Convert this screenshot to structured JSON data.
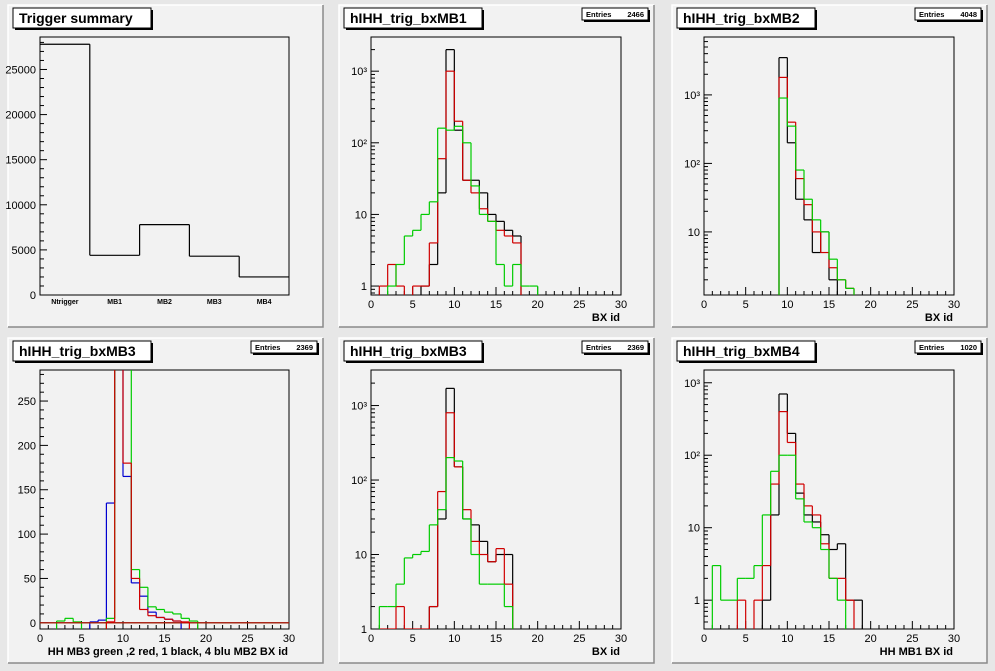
{
  "colors": {
    "black": "#000000",
    "red": "#d00000",
    "green": "#00cc00",
    "blue": "#0000d0",
    "pad": "#f2f2f2",
    "frame": "#e7e7e7"
  },
  "chart_data": [
    {
      "type": "bar",
      "title": "Trigger summary",
      "entries_label": "",
      "entries": "",
      "xlabel": "",
      "ylog": false,
      "ylim": [
        0,
        28600
      ],
      "yticks": [
        0,
        5000,
        10000,
        15000,
        20000,
        25000
      ],
      "ytick_labels": [
        "0",
        "5000",
        "10000",
        "15000",
        "20000",
        "25000"
      ],
      "categories": [
        "Ntrigger",
        "MB1",
        "MB2",
        "MB3",
        "MB4"
      ],
      "values": [
        27800,
        4400,
        7800,
        4300,
        2000
      ],
      "series": [
        {
          "color": "#000000",
          "values": [
            27800,
            4400,
            7800,
            4300,
            2000
          ]
        }
      ]
    },
    {
      "type": "histogram",
      "title": "hIHH_trig_bxMB1",
      "entries_label": "Entries",
      "entries": "2466",
      "xlabel": "BX id",
      "ylog": true,
      "xlim": [
        0,
        30
      ],
      "ylim": [
        0.75,
        3000
      ],
      "xticks": [
        0,
        5,
        10,
        15,
        20,
        25,
        30
      ],
      "xtick_labels": [
        "0",
        "5",
        "10",
        "15",
        "20",
        "25",
        "30"
      ],
      "yticks": [
        1,
        10,
        100,
        1000
      ],
      "ytick_labels": [
        "1",
        "10",
        "10²",
        "10³"
      ],
      "series": [
        {
          "color": "#000000",
          "bins": [
            [
              6,
              1
            ],
            [
              7,
              2
            ],
            [
              8,
              20
            ],
            [
              9,
              2000
            ],
            [
              10,
              150
            ],
            [
              11,
              30
            ],
            [
              12,
              30
            ],
            [
              13,
              20
            ],
            [
              14,
              10
            ],
            [
              15,
              8
            ],
            [
              16,
              6
            ],
            [
              17,
              5
            ]
          ]
        },
        {
          "color": "#d00000",
          "bins": [
            [
              1,
              1
            ],
            [
              2,
              2
            ],
            [
              3,
              1
            ],
            [
              5,
              1
            ],
            [
              6,
              1
            ],
            [
              7,
              4
            ],
            [
              8,
              60
            ],
            [
              9,
              1000
            ],
            [
              10,
              200
            ],
            [
              11,
              30
            ],
            [
              12,
              20
            ],
            [
              13,
              12
            ],
            [
              14,
              8
            ],
            [
              15,
              6
            ],
            [
              16,
              5
            ],
            [
              17,
              4
            ]
          ]
        },
        {
          "color": "#00cc00",
          "bins": [
            [
              2,
              1
            ],
            [
              3,
              2
            ],
            [
              4,
              5
            ],
            [
              5,
              6
            ],
            [
              6,
              10
            ],
            [
              7,
              15
            ],
            [
              8,
              160
            ],
            [
              9,
              150
            ],
            [
              10,
              170
            ],
            [
              11,
              100
            ],
            [
              12,
              25
            ],
            [
              13,
              10
            ],
            [
              14,
              8
            ],
            [
              15,
              2
            ],
            [
              16,
              1
            ],
            [
              17,
              2
            ],
            [
              18,
              1
            ],
            [
              19,
              1
            ]
          ]
        }
      ]
    },
    {
      "type": "histogram",
      "title": "hIHH_trig_bxMB2",
      "entries_label": "Entries",
      "entries": "4048",
      "xlabel": "BX id",
      "ylog": true,
      "xlim": [
        0,
        30
      ],
      "ylim": [
        1.2,
        7000
      ],
      "xticks": [
        0,
        5,
        10,
        15,
        20,
        25,
        30
      ],
      "xtick_labels": [
        "0",
        "5",
        "10",
        "15",
        "20",
        "25",
        "30"
      ],
      "yticks": [
        10,
        100,
        1000
      ],
      "ytick_labels": [
        "10",
        "10²",
        "10³"
      ],
      "series": [
        {
          "color": "#000000",
          "bins": [
            [
              9,
              3500
            ],
            [
              10,
              200
            ],
            [
              11,
              30
            ],
            [
              12,
              15
            ],
            [
              13,
              5
            ],
            [
              14,
              10
            ],
            [
              15,
              2
            ]
          ]
        },
        {
          "color": "#d00000",
          "bins": [
            [
              9,
              1800
            ],
            [
              10,
              400
            ],
            [
              11,
              60
            ],
            [
              12,
              25
            ],
            [
              13,
              10
            ],
            [
              14,
              5
            ],
            [
              15,
              3
            ],
            [
              16,
              2
            ],
            [
              17,
              1.5
            ]
          ]
        },
        {
          "color": "#00cc00",
          "bins": [
            [
              9,
              900
            ],
            [
              10,
              350
            ],
            [
              11,
              80
            ],
            [
              12,
              30
            ],
            [
              13,
              15
            ],
            [
              14,
              10
            ],
            [
              15,
              4
            ],
            [
              16,
              2
            ],
            [
              17,
              1.5
            ]
          ]
        }
      ]
    },
    {
      "type": "histogram",
      "title": "hIHH_trig_bxMB3",
      "entries_label": "Entries",
      "entries": "2369",
      "xlabel": "HH  MB3 green ,2 red, 1 black, 4 blu     MB2 BX id",
      "ylog": false,
      "xlim": [
        0,
        30
      ],
      "ylim": [
        -7,
        285
      ],
      "xticks": [
        0,
        5,
        10,
        15,
        20,
        25,
        30
      ],
      "xtick_labels": [
        "0",
        "5",
        "10",
        "15",
        "20",
        "25",
        "30"
      ],
      "yticks": [
        0,
        50,
        100,
        150,
        200,
        250
      ],
      "ytick_labels": [
        "0",
        "50",
        "100",
        "150",
        "200",
        "250"
      ],
      "series": [
        {
          "color": "#0000d0",
          "bins": [
            [
              6,
              1
            ],
            [
              7,
              3
            ],
            [
              8,
              135
            ],
            [
              9,
              600
            ],
            [
              10,
              165
            ],
            [
              11,
              45
            ],
            [
              12,
              30
            ],
            [
              13,
              12
            ],
            [
              14,
              6
            ],
            [
              15,
              4
            ],
            [
              16,
              2
            ]
          ]
        },
        {
          "color": "#00cc00",
          "bins": [
            [
              2,
              2
            ],
            [
              3,
              5
            ],
            [
              4,
              1
            ],
            [
              8,
              5
            ],
            [
              9,
              290
            ],
            [
              10,
              290
            ],
            [
              11,
              60
            ],
            [
              12,
              40
            ],
            [
              13,
              18
            ],
            [
              14,
              15
            ],
            [
              15,
              12
            ],
            [
              16,
              10
            ],
            [
              17,
              5
            ],
            [
              18,
              2
            ]
          ]
        },
        {
          "color": "#d00000",
          "bins": [
            [
              8,
              1
            ],
            [
              9,
              290
            ],
            [
              10,
              180
            ],
            [
              11,
              50
            ],
            [
              12,
              15
            ],
            [
              13,
              8
            ],
            [
              14,
              6
            ],
            [
              15,
              4
            ],
            [
              16,
              2
            ],
            [
              17,
              1
            ]
          ]
        }
      ]
    },
    {
      "type": "histogram",
      "title": "hIHH_trig_bxMB3",
      "entries_label": "Entries",
      "entries": "2369",
      "xlabel": "BX id",
      "ylog": true,
      "xlim": [
        0,
        30
      ],
      "ylim": [
        1,
        3000
      ],
      "xticks": [
        0,
        5,
        10,
        15,
        20,
        25,
        30
      ],
      "xtick_labels": [
        "0",
        "5",
        "10",
        "15",
        "20",
        "25",
        "30"
      ],
      "yticks": [
        1,
        10,
        100,
        1000
      ],
      "ytick_labels": [
        "1",
        "10",
        "10²",
        "10³"
      ],
      "series": [
        {
          "color": "#000000",
          "bins": [
            [
              7,
              2
            ],
            [
              8,
              30
            ],
            [
              9,
              1700
            ],
            [
              10,
              150
            ],
            [
              11,
              30
            ],
            [
              12,
              25
            ],
            [
              13,
              15
            ],
            [
              14,
              8
            ],
            [
              15,
              10
            ],
            [
              16,
              10
            ]
          ]
        },
        {
          "color": "#d00000",
          "bins": [
            [
              1,
              1
            ],
            [
              2,
              1
            ],
            [
              3,
              2
            ],
            [
              4,
              1
            ],
            [
              5,
              1
            ],
            [
              6,
              1
            ],
            [
              7,
              2
            ],
            [
              8,
              70
            ],
            [
              9,
              800
            ],
            [
              10,
              150
            ],
            [
              11,
              40
            ],
            [
              12,
              15
            ],
            [
              13,
              10
            ],
            [
              14,
              8
            ],
            [
              15,
              12
            ],
            [
              16,
              4
            ]
          ]
        },
        {
          "color": "#00cc00",
          "bins": [
            [
              1,
              2
            ],
            [
              2,
              2
            ],
            [
              3,
              4
            ],
            [
              4,
              9
            ],
            [
              5,
              10
            ],
            [
              6,
              11
            ],
            [
              7,
              25
            ],
            [
              8,
              40
            ],
            [
              9,
              200
            ],
            [
              10,
              180
            ],
            [
              11,
              30
            ],
            [
              12,
              10
            ],
            [
              13,
              4
            ],
            [
              14,
              4
            ],
            [
              15,
              4
            ],
            [
              16,
              2
            ]
          ]
        }
      ]
    },
    {
      "type": "histogram",
      "title": "hIHH_trig_bxMB4",
      "entries_label": "Entries",
      "entries": "1020",
      "xlabel": "HH MB1 BX id",
      "ylog": true,
      "xlim": [
        0,
        30
      ],
      "ylim": [
        0.4,
        1500
      ],
      "xticks": [
        0,
        5,
        10,
        15,
        20,
        25,
        30
      ],
      "xtick_labels": [
        "0",
        "5",
        "10",
        "15",
        "20",
        "25",
        "30"
      ],
      "yticks": [
        1,
        10,
        100,
        1000
      ],
      "ytick_labels": [
        "1",
        "10",
        "10²",
        "10³"
      ],
      "series": [
        {
          "color": "#000000",
          "bins": [
            [
              7,
              1
            ],
            [
              8,
              15
            ],
            [
              9,
              700
            ],
            [
              10,
              200
            ],
            [
              11,
              30
            ],
            [
              12,
              15
            ],
            [
              13,
              12
            ],
            [
              14,
              8
            ],
            [
              15,
              5
            ],
            [
              16,
              6
            ],
            [
              17,
              1
            ],
            [
              18,
              1
            ]
          ]
        },
        {
          "color": "#d00000",
          "bins": [
            [
              4,
              1
            ],
            [
              6,
              1
            ],
            [
              7,
              3
            ],
            [
              8,
              40
            ],
            [
              9,
              400
            ],
            [
              10,
              150
            ],
            [
              11,
              40
            ],
            [
              12,
              20
            ],
            [
              13,
              15
            ],
            [
              14,
              6
            ],
            [
              15,
              2
            ],
            [
              16,
              2
            ],
            [
              17,
              1
            ]
          ]
        },
        {
          "color": "#00cc00",
          "bins": [
            [
              1,
              3
            ],
            [
              2,
              1
            ],
            [
              3,
              1
            ],
            [
              4,
              2
            ],
            [
              5,
              2
            ],
            [
              6,
              3
            ],
            [
              7,
              15
            ],
            [
              8,
              60
            ],
            [
              9,
              100
            ],
            [
              10,
              100
            ],
            [
              11,
              25
            ],
            [
              12,
              12
            ],
            [
              13,
              10
            ],
            [
              14,
              5
            ],
            [
              15,
              2
            ],
            [
              16,
              1
            ]
          ]
        }
      ]
    }
  ]
}
